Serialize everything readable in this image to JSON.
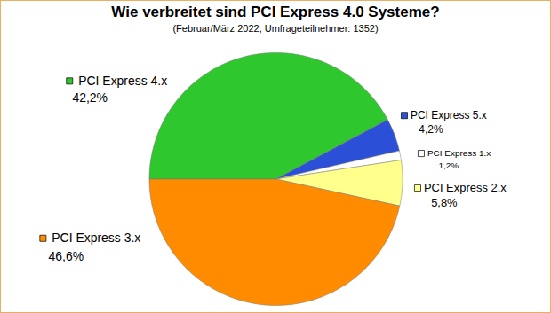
{
  "chart_data": {
    "type": "pie",
    "title": "Wie verbreitet sind PCI Express 4.0 Systeme?",
    "subtitle": "(Februar/März 2022, Umfrageteilnehmer: 1352)",
    "categories": [
      "PCI Express 4.x",
      "PCI Express 5.x",
      "PCI Express 1.x",
      "PCI Express 2.x",
      "PCI Express 3.x"
    ],
    "values": [
      42.2,
      4.2,
      1.2,
      5.8,
      46.6
    ],
    "value_labels": [
      "42,2%",
      "4,2%",
      "1,2%",
      "5,8%",
      "46,6%"
    ],
    "colors": [
      "#2ec82e",
      "#2b4fd6",
      "#ffffff",
      "#ffff8c",
      "#ff8c00"
    ],
    "data_labels": true
  }
}
